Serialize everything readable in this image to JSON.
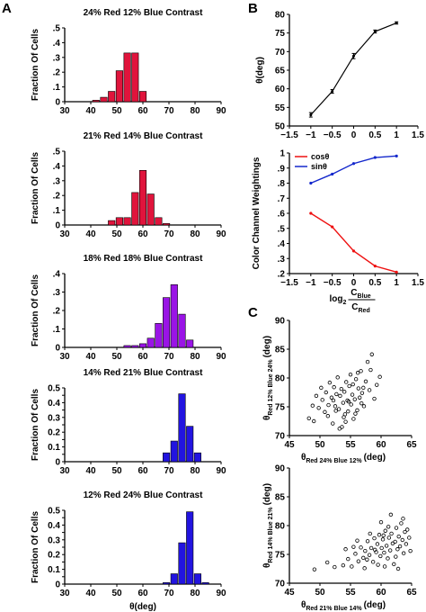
{
  "panels": {
    "a": "A",
    "b": "B",
    "c": "C"
  },
  "colors": {
    "red": "#e0143c",
    "purple": "#9a14e6",
    "blue": "#2214e0",
    "cos": "#ee1111",
    "sin": "#1428cc",
    "line": "#000000"
  },
  "chart_data": [
    {
      "type": "bar",
      "panel": "A",
      "title": "24% Red 12% Blue Contrast",
      "ylabel": "Fraction Of Cells",
      "xticks": [
        30,
        40,
        50,
        60,
        70,
        80,
        90
      ],
      "xlim": [
        30,
        90
      ],
      "yticks": [
        0,
        0.1,
        0.2,
        0.3,
        0.4,
        0.5
      ],
      "ylim": [
        0,
        0.5
      ],
      "color": "red",
      "x": [
        42,
        45,
        48,
        51,
        54,
        57,
        60
      ],
      "values": [
        0.01,
        0.03,
        0.07,
        0.21,
        0.33,
        0.33,
        0.07
      ]
    },
    {
      "type": "bar",
      "panel": "A",
      "title": "21% Red 14% Blue Contrast",
      "ylabel": "Fraction Of Cells",
      "xticks": [
        30,
        40,
        50,
        60,
        70,
        80,
        90
      ],
      "xlim": [
        30,
        90
      ],
      "yticks": [
        0,
        0.1,
        0.2,
        0.3,
        0.4,
        0.5
      ],
      "ylim": [
        0,
        0.5
      ],
      "color": "red",
      "x": [
        48,
        51,
        54,
        57,
        60,
        63,
        66,
        69
      ],
      "values": [
        0.03,
        0.05,
        0.05,
        0.22,
        0.37,
        0.21,
        0.05,
        0.01
      ]
    },
    {
      "type": "bar",
      "panel": "A",
      "title": "18% Red 18% Blue Contrast",
      "ylabel": "Fraction Of Cells",
      "xticks": [
        30,
        40,
        50,
        60,
        70,
        80,
        90
      ],
      "xlim": [
        30,
        90
      ],
      "yticks": [
        0,
        0.1,
        0.2,
        0.3,
        0.4
      ],
      "ylim": [
        0,
        0.4
      ],
      "color": "purple",
      "x": [
        54,
        57,
        60,
        63,
        66,
        69,
        72,
        75,
        78
      ],
      "values": [
        0.01,
        0.01,
        0.02,
        0.05,
        0.13,
        0.27,
        0.34,
        0.18,
        0.04
      ]
    },
    {
      "type": "bar",
      "panel": "A",
      "title": "14% Red 21% Blue Contrast",
      "ylabel": "Fraction Of Cells",
      "xticks": [
        30,
        40,
        50,
        60,
        70,
        80,
        90
      ],
      "xlim": [
        30,
        90
      ],
      "yticks": [
        0,
        0.05,
        0.1,
        0.15,
        0.2,
        0.25,
        0.3,
        0.35,
        0.4,
        0.45,
        0.5
      ],
      "ytick_labels": [
        "0",
        "",
        "0.1",
        "",
        "0.2",
        "",
        "0.3",
        "",
        "0.4",
        "",
        "0.5"
      ],
      "ylim": [
        0,
        0.5
      ],
      "color": "blue",
      "x": [
        69,
        72,
        75,
        78,
        81
      ],
      "values": [
        0.06,
        0.14,
        0.46,
        0.24,
        0.06
      ]
    },
    {
      "type": "bar",
      "panel": "A",
      "title": "12% Red 24% Blue Contrast",
      "ylabel": "Fraction Of Cells",
      "xlabel": "θ(deg)",
      "xticks": [
        30,
        40,
        50,
        60,
        70,
        80,
        90
      ],
      "xlim": [
        30,
        90
      ],
      "yticks": [
        0,
        0.05,
        0.1,
        0.15,
        0.2,
        0.25,
        0.3,
        0.35,
        0.4,
        0.45,
        0.5
      ],
      "ytick_labels": [
        "0",
        "",
        "0.1",
        "",
        "0.2",
        "",
        "0.3",
        "",
        "0.4",
        "",
        "0.5"
      ],
      "ylim": [
        0,
        0.5
      ],
      "color": "blue",
      "x": [
        69,
        72,
        75,
        78,
        81,
        84
      ],
      "values": [
        0.01,
        0.07,
        0.28,
        0.49,
        0.07,
        0.01
      ]
    },
    {
      "type": "line",
      "panel": "B",
      "ylabel": "θ(deg)",
      "xticks": [
        -1.5,
        -1,
        -0.5,
        0,
        0.5,
        1,
        1.5
      ],
      "xtick_labels": [
        "−1.5",
        "−1",
        "−0.5",
        "0",
        "0.5",
        "1",
        "1.5"
      ],
      "xlim": [
        -1.5,
        1.5
      ],
      "yticks": [
        50,
        55,
        60,
        65,
        70,
        75,
        80
      ],
      "ylim": [
        50,
        80
      ],
      "series": [
        {
          "color": "line",
          "x": [
            -1,
            -0.5,
            0,
            0.5,
            1
          ],
          "y": [
            53,
            59.3,
            68.8,
            75.4,
            77.7
          ],
          "err": [
            0.6,
            0.5,
            0.7,
            0.4,
            0.3
          ]
        }
      ]
    },
    {
      "type": "line",
      "panel": "B",
      "ylabel": "Color Channel Weightings",
      "xlabel_parts": {
        "log": "log",
        "base": "2",
        "num": "C",
        "num_sub": "Blue",
        "den": "C",
        "den_sub": "Red"
      },
      "xticks": [
        -1.5,
        -1,
        -0.5,
        0,
        0.5,
        1,
        1.5
      ],
      "xtick_labels": [
        "−1.5",
        "−1",
        "−0.5",
        "0",
        "0.5",
        "1",
        "1.5"
      ],
      "xlim": [
        -1.5,
        1.5
      ],
      "yticks": [
        0.2,
        0.3,
        0.4,
        0.5,
        0.6,
        0.7,
        0.8,
        0.9,
        1
      ],
      "ylim": [
        0.2,
        1
      ],
      "series": [
        {
          "name": "cosθ",
          "color": "cos",
          "x": [
            -1,
            -0.5,
            0,
            0.5,
            1
          ],
          "y": [
            0.6,
            0.51,
            0.35,
            0.25,
            0.21
          ]
        },
        {
          "name": "sinθ",
          "color": "sin",
          "x": [
            -1,
            -0.5,
            0,
            0.5,
            1
          ],
          "y": [
            0.8,
            0.86,
            0.93,
            0.97,
            0.98
          ]
        }
      ]
    },
    {
      "type": "scatter",
      "panel": "C",
      "xlabel": {
        "main": "θ",
        "sub": "Red 24% Blue 12%",
        "unit": "(deg)"
      },
      "ylabel": {
        "main": "θ",
        "sub": "Red 12% Blue 24%",
        "unit": "(deg)"
      },
      "xticks": [
        45,
        50,
        55,
        60,
        65
      ],
      "xlim": [
        45,
        65
      ],
      "yticks": [
        70,
        75,
        80,
        85,
        90
      ],
      "ylim": [
        70,
        90
      ],
      "points": [
        [
          48.2,
          73
        ],
        [
          49,
          72.5
        ],
        [
          49.8,
          74.8
        ],
        [
          50.4,
          76.2
        ],
        [
          50.8,
          74.1
        ],
        [
          51,
          77.5
        ],
        [
          51.3,
          73.4
        ],
        [
          51.6,
          79.2
        ],
        [
          51.9,
          76.6
        ],
        [
          52.1,
          72.1
        ],
        [
          52.3,
          78.4
        ],
        [
          52.5,
          75.1
        ],
        [
          52.7,
          77.2
        ],
        [
          52.9,
          80.1
        ],
        [
          53.1,
          74.6
        ],
        [
          53.3,
          76.9
        ],
        [
          53.5,
          78.1
        ],
        [
          53.6,
          71.5
        ],
        [
          53.8,
          75.7
        ],
        [
          54,
          77.6
        ],
        [
          54.1,
          73.7
        ],
        [
          54.3,
          79.3
        ],
        [
          54.5,
          76.1
        ],
        [
          54.6,
          74.2
        ],
        [
          54.8,
          78.6
        ],
        [
          55,
          80.6
        ],
        [
          55.1,
          75.4
        ],
        [
          55.3,
          77.1
        ],
        [
          55.5,
          72.9
        ],
        [
          55.7,
          76.3
        ],
        [
          55.9,
          79.8
        ],
        [
          56.1,
          74.4
        ],
        [
          56.3,
          78.2
        ],
        [
          56.5,
          76.6
        ],
        [
          56.7,
          81.2
        ],
        [
          56.9,
          77.4
        ],
        [
          57.2,
          75.1
        ],
        [
          57.5,
          79.4
        ],
        [
          57.8,
          82.8
        ],
        [
          58.1,
          77.9
        ],
        [
          58.5,
          84.1
        ],
        [
          58.9,
          76.4
        ],
        [
          59.3,
          78.8
        ],
        [
          59.8,
          80.2
        ],
        [
          51.4,
          75.3
        ],
        [
          52.6,
          74.3
        ],
        [
          53.9,
          73.2
        ],
        [
          55.4,
          78.9
        ],
        [
          56.2,
          80.9
        ],
        [
          54.2,
          72.4
        ],
        [
          50.2,
          78.3
        ],
        [
          49.4,
          76.9
        ],
        [
          53.2,
          71.2
        ],
        [
          55.8,
          73.8
        ],
        [
          57.1,
          78.3
        ],
        [
          58.3,
          81.4
        ],
        [
          52.2,
          76.1
        ],
        [
          54.7,
          75.9
        ],
        [
          56.8,
          75.6
        ],
        [
          48.8,
          75.2
        ]
      ]
    },
    {
      "type": "scatter",
      "panel": "C",
      "xlabel": {
        "main": "θ",
        "sub": "Red 21% Blue 14%",
        "unit": "(deg)"
      },
      "ylabel": {
        "main": "θ",
        "sub": "Red 14% Blue 21%",
        "unit": "(deg)"
      },
      "xticks": [
        45,
        50,
        55,
        60,
        65
      ],
      "xlim": [
        45,
        65
      ],
      "yticks": [
        70,
        75,
        80,
        85,
        90
      ],
      "ylim": [
        70,
        90
      ],
      "points": [
        [
          49.1,
          72.4
        ],
        [
          51.2,
          73.6
        ],
        [
          52.4,
          72.8
        ],
        [
          53.8,
          73.1
        ],
        [
          54.6,
          74.2
        ],
        [
          55.2,
          72.9
        ],
        [
          55.8,
          75.1
        ],
        [
          56.3,
          73.8
        ],
        [
          56.7,
          76.2
        ],
        [
          57.1,
          74.4
        ],
        [
          57.4,
          75.6
        ],
        [
          57.8,
          77.3
        ],
        [
          58.1,
          74.9
        ],
        [
          58.4,
          76.1
        ],
        [
          58.7,
          73.7
        ],
        [
          58.9,
          77.8
        ],
        [
          59.2,
          75.4
        ],
        [
          59.4,
          76.8
        ],
        [
          59.7,
          78.4
        ],
        [
          59.9,
          74.7
        ],
        [
          60.1,
          76.1
        ],
        [
          60.3,
          77.6
        ],
        [
          60.5,
          75.3
        ],
        [
          60.7,
          79.1
        ],
        [
          60.9,
          76.5
        ],
        [
          61.1,
          74.3
        ],
        [
          61.3,
          77.9
        ],
        [
          61.5,
          75.7
        ],
        [
          61.7,
          78.6
        ],
        [
          61.9,
          76.9
        ],
        [
          62.1,
          73.3
        ],
        [
          62.3,
          77.2
        ],
        [
          62.5,
          79.6
        ],
        [
          62.7,
          75.9
        ],
        [
          62.9,
          78.1
        ],
        [
          63.1,
          76.4
        ],
        [
          63.3,
          80.4
        ],
        [
          63.5,
          77.5
        ],
        [
          63.7,
          75.2
        ],
        [
          63.9,
          78.9
        ],
        [
          64.1,
          76.8
        ],
        [
          64.3,
          79.3
        ],
        [
          64.6,
          77.9
        ],
        [
          64.8,
          75.6
        ],
        [
          60,
          80.6
        ],
        [
          61.6,
          81.9
        ],
        [
          62.4,
          74.6
        ],
        [
          59.5,
          73.2
        ],
        [
          58.2,
          78.6
        ],
        [
          57.3,
          72.6
        ],
        [
          56.1,
          77.4
        ],
        [
          55.5,
          76.3
        ],
        [
          60.6,
          72.9
        ],
        [
          62.8,
          72.5
        ],
        [
          61.2,
          79.8
        ],
        [
          63.6,
          81.2
        ],
        [
          59,
          75.8
        ],
        [
          57.7,
          74.1
        ],
        [
          54.2,
          75.9
        ],
        [
          60.4,
          78.3
        ]
      ]
    }
  ]
}
